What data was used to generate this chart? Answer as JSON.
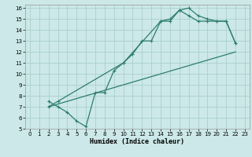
{
  "title": "",
  "xlabel": "Humidex (Indice chaleur)",
  "bg_color": "#cce8e8",
  "grid_color": "#aacfcf",
  "line_color": "#2e7d6e",
  "xlim": [
    -0.5,
    23.5
  ],
  "ylim": [
    5,
    16.3
  ],
  "xticks": [
    0,
    1,
    2,
    3,
    4,
    5,
    6,
    7,
    8,
    9,
    10,
    11,
    12,
    13,
    14,
    15,
    16,
    17,
    18,
    19,
    20,
    21,
    22,
    23
  ],
  "yticks": [
    5,
    6,
    7,
    8,
    9,
    10,
    11,
    12,
    13,
    14,
    15,
    16
  ],
  "line1_x": [
    2,
    3,
    4,
    5,
    6,
    7,
    8,
    9,
    10,
    11,
    12,
    13,
    14,
    15,
    16,
    17,
    18,
    19,
    20,
    21,
    22
  ],
  "line1_y": [
    7.5,
    7.0,
    6.5,
    5.7,
    5.2,
    8.3,
    8.3,
    10.3,
    11.0,
    11.8,
    13.0,
    13.0,
    14.8,
    15.0,
    15.8,
    16.0,
    15.3,
    15.0,
    14.8,
    14.8,
    12.8
  ],
  "line2_x": [
    2,
    3,
    10,
    14,
    15,
    16,
    17,
    18,
    19,
    20,
    21,
    22
  ],
  "line2_y": [
    7.0,
    7.5,
    11.0,
    14.8,
    14.8,
    15.8,
    15.3,
    14.8,
    14.8,
    14.8,
    14.8,
    12.8
  ],
  "line3_x": [
    2,
    22
  ],
  "line3_y": [
    7.0,
    12.0
  ]
}
